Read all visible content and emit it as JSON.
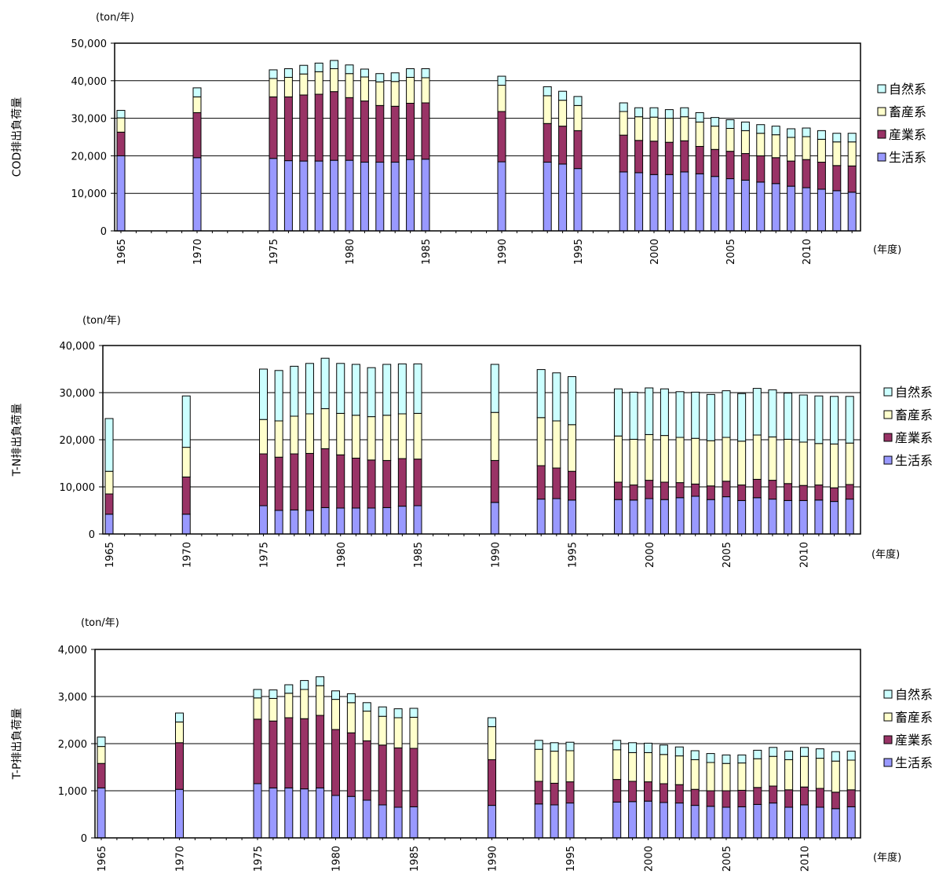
{
  "colors": {
    "生活系": "#9999ff",
    "産業系": "#993366",
    "畜産系": "#ffffcc",
    "自然系": "#ccffff"
  },
  "chart_data": [
    {
      "type": "bar",
      "stacked": true,
      "unit_label": "(ton/年)",
      "ylabel": "COD排出負荷量",
      "xlabel": "(年度)",
      "ylim": [
        0,
        50000
      ],
      "yticks": [
        "0",
        "10,000",
        "20,000",
        "30,000",
        "40,000",
        "50,000"
      ],
      "xticks": [
        "1965",
        "1970",
        "1975",
        "1980",
        "1985",
        "1990",
        "1995",
        "2000",
        "2005",
        "2010"
      ],
      "legend": [
        "自然系",
        "畜産系",
        "産業系",
        "生活系"
      ],
      "legend_position": "right",
      "grid": true,
      "categories": [
        1965,
        1970,
        1975,
        1976,
        1977,
        1978,
        1979,
        1980,
        1981,
        1982,
        1983,
        1984,
        1985,
        1990,
        1993,
        1994,
        1995,
        1998,
        1999,
        2000,
        2001,
        2002,
        2003,
        2004,
        2005,
        2006,
        2007,
        2008,
        2009,
        2010,
        2011,
        2012,
        2013
      ],
      "series": [
        {
          "name": "生活系",
          "values": [
            20000,
            19500,
            19300,
            18700,
            18600,
            18600,
            18800,
            18800,
            18300,
            18300,
            18300,
            19000,
            19100,
            18400,
            18300,
            17800,
            16600,
            15700,
            15500,
            15000,
            15000,
            15700,
            15200,
            14500,
            13900,
            13500,
            13000,
            12600,
            11900,
            11500,
            11100,
            10700,
            10300
          ]
        },
        {
          "name": "産業系",
          "values": [
            6300,
            12000,
            16400,
            17000,
            17600,
            17800,
            18300,
            16700,
            16300,
            15100,
            14900,
            15000,
            15000,
            13400,
            10300,
            10100,
            10100,
            9800,
            8600,
            8900,
            8600,
            8300,
            7300,
            7200,
            7300,
            7100,
            7000,
            6900,
            6700,
            7500,
            7200,
            6700,
            7000
          ]
        },
        {
          "name": "畜産系",
          "values": [
            3800,
            4200,
            4900,
            5200,
            5600,
            6000,
            6100,
            6400,
            6400,
            6300,
            6600,
            6900,
            6700,
            7000,
            7400,
            6900,
            6700,
            6300,
            6300,
            6400,
            6400,
            6400,
            6500,
            6200,
            6100,
            6100,
            6000,
            6100,
            6300,
            6100,
            6100,
            6300,
            6400
          ]
        },
        {
          "name": "自然系",
          "values": [
            2000,
            2400,
            2300,
            2300,
            2300,
            2300,
            2200,
            2300,
            2100,
            2200,
            2300,
            2300,
            2400,
            2400,
            2400,
            2400,
            2400,
            2300,
            2400,
            2500,
            2300,
            2400,
            2500,
            2300,
            2300,
            2300,
            2300,
            2300,
            2300,
            2300,
            2300,
            2300,
            2300
          ]
        }
      ]
    },
    {
      "type": "bar",
      "stacked": true,
      "unit_label": "(ton/年)",
      "ylabel": "T-N排出負荷量",
      "xlabel": "(年度)",
      "ylim": [
        0,
        40000
      ],
      "yticks": [
        "0",
        "10,000",
        "20,000",
        "30,000",
        "40,000"
      ],
      "xticks": [
        "1965",
        "1970",
        "1975",
        "1980",
        "1985",
        "1990",
        "1995",
        "2000",
        "2005",
        "2010"
      ],
      "legend": [
        "自然系",
        "畜産系",
        "産業系",
        "生活系"
      ],
      "legend_position": "right",
      "grid": true,
      "categories": [
        1965,
        1970,
        1975,
        1976,
        1977,
        1978,
        1979,
        1980,
        1981,
        1982,
        1983,
        1984,
        1985,
        1990,
        1993,
        1994,
        1995,
        1998,
        1999,
        2000,
        2001,
        2002,
        2003,
        2004,
        2005,
        2006,
        2007,
        2008,
        2009,
        2010,
        2011,
        2012,
        2013
      ],
      "series": [
        {
          "name": "生活系",
          "values": [
            4200,
            4200,
            6000,
            5000,
            5100,
            5000,
            5600,
            5500,
            5500,
            5500,
            5600,
            5900,
            6000,
            6700,
            7400,
            7500,
            7200,
            7300,
            7200,
            7500,
            7300,
            7700,
            8000,
            7300,
            7900,
            7100,
            7700,
            7400,
            7100,
            7100,
            7200,
            6900,
            7400
          ]
        },
        {
          "name": "産業系",
          "values": [
            4300,
            7900,
            11000,
            11300,
            11900,
            12100,
            12500,
            11300,
            10600,
            10200,
            10000,
            10100,
            9900,
            8900,
            7100,
            6500,
            6100,
            3700,
            3200,
            3900,
            3700,
            3200,
            2600,
            2900,
            3300,
            3300,
            3900,
            4000,
            3600,
            3200,
            3200,
            2900,
            3100
          ]
        },
        {
          "name": "畜産系",
          "values": [
            4800,
            6300,
            7300,
            7700,
            8000,
            8400,
            8500,
            8800,
            9100,
            9200,
            9600,
            9500,
            9700,
            10200,
            10200,
            10000,
            9900,
            9800,
            9700,
            9700,
            9900,
            9600,
            9700,
            9600,
            9300,
            9300,
            9400,
            9200,
            9400,
            9200,
            8800,
            9300,
            8800
          ]
        },
        {
          "name": "自然系",
          "values": [
            11200,
            10900,
            10700,
            10700,
            10600,
            10700,
            10700,
            10600,
            10800,
            10400,
            10800,
            10600,
            10500,
            10200,
            10200,
            10200,
            10200,
            10000,
            10000,
            9900,
            9900,
            9700,
            9800,
            9800,
            9900,
            10100,
            9900,
            10000,
            9800,
            10000,
            10100,
            10100,
            9900
          ]
        }
      ]
    },
    {
      "type": "bar",
      "stacked": true,
      "unit_label": "(ton/年)",
      "ylabel": "T-P排出負荷量",
      "xlabel": "(年度)",
      "ylim": [
        0,
        4000
      ],
      "yticks": [
        "0",
        "1,000",
        "2,000",
        "3,000",
        "4,000"
      ],
      "xticks": [
        "1965",
        "1970",
        "1975",
        "1980",
        "1985",
        "1990",
        "1995",
        "2000",
        "2005",
        "2010"
      ],
      "legend": [
        "自然系",
        "畜産系",
        "産業系",
        "生活系"
      ],
      "legend_position": "right",
      "grid": true,
      "categories": [
        1965,
        1970,
        1975,
        1976,
        1977,
        1978,
        1979,
        1980,
        1981,
        1982,
        1983,
        1984,
        1985,
        1990,
        1993,
        1994,
        1995,
        1998,
        1999,
        2000,
        2001,
        2002,
        2003,
        2004,
        2005,
        2006,
        2007,
        2008,
        2009,
        2010,
        2011,
        2012,
        2013
      ],
      "series": [
        {
          "name": "生活系",
          "values": [
            1060,
            1030,
            1150,
            1060,
            1060,
            1040,
            1060,
            900,
            880,
            800,
            700,
            650,
            660,
            690,
            720,
            700,
            740,
            760,
            770,
            780,
            750,
            740,
            690,
            670,
            650,
            660,
            710,
            740,
            650,
            700,
            650,
            620,
            660
          ]
        },
        {
          "name": "産業系",
          "values": [
            520,
            990,
            1370,
            1420,
            1490,
            1490,
            1540,
            1400,
            1350,
            1260,
            1270,
            1260,
            1240,
            970,
            480,
            460,
            450,
            480,
            430,
            410,
            400,
            390,
            340,
            330,
            350,
            350,
            360,
            360,
            370,
            380,
            400,
            350,
            360
          ]
        },
        {
          "name": "畜産系",
          "values": [
            360,
            440,
            450,
            480,
            520,
            620,
            630,
            640,
            640,
            630,
            610,
            640,
            660,
            700,
            680,
            680,
            660,
            630,
            610,
            620,
            620,
            610,
            630,
            600,
            580,
            580,
            610,
            630,
            640,
            650,
            640,
            660,
            630
          ]
        },
        {
          "name": "自然系",
          "values": [
            200,
            190,
            180,
            180,
            180,
            190,
            190,
            180,
            190,
            180,
            200,
            190,
            190,
            190,
            190,
            180,
            180,
            200,
            210,
            200,
            200,
            190,
            190,
            190,
            180,
            170,
            180,
            190,
            180,
            190,
            200,
            200,
            190
          ]
        }
      ]
    }
  ]
}
